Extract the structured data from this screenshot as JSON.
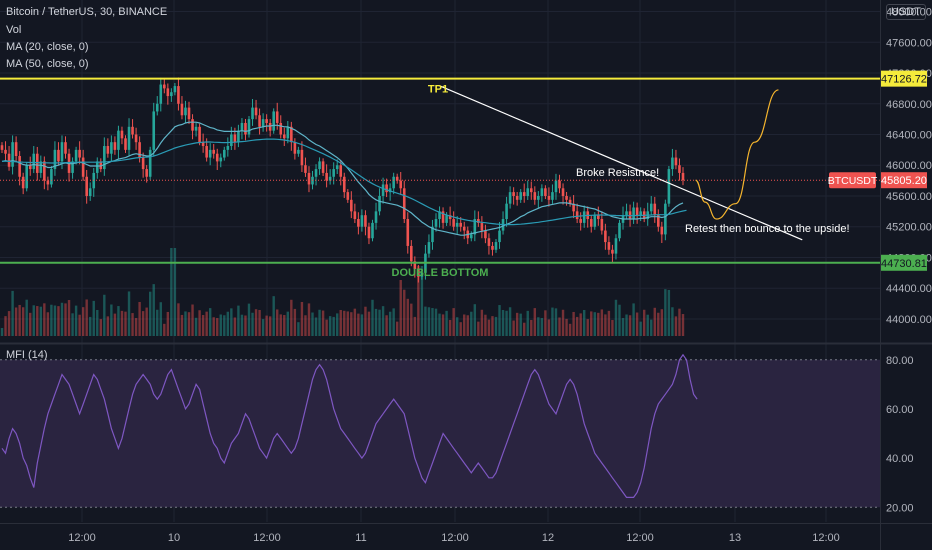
{
  "legend": {
    "title": "Bitcoin / TetherUS, 30, BINANCE",
    "vol": "Vol",
    "ma20": "MA (20, close, 0)",
    "ma50": "MA (50, close, 0)"
  },
  "mfi_label": "MFI (14)",
  "currency": "USDT",
  "colors": {
    "background": "#131722",
    "up": "#26a69a",
    "down": "#ef5350",
    "ma_fast": "#5fb5c9",
    "ma_slow": "#2a9bb5",
    "tp_line": "#f5eb3b",
    "support_line": "#4caf50",
    "trend_line": "#ffffff",
    "projection": "#f5b52e",
    "mfi_line": "#7e57c2",
    "mfi_band": "#2a2440"
  },
  "annotations": {
    "tp1": "TP1",
    "double_bottom": "DOUBLE BOTTOM",
    "broke": "Broke Resistnce!",
    "retest": "Retest then bounce to the upside!"
  },
  "price_tags": {
    "tp": "47126.72",
    "current_symbol": "BTCUSDT",
    "current": "45805.20",
    "support": "44730.81"
  },
  "chart_data": [
    {
      "type": "candlestick",
      "title": "Bitcoin / TetherUS, 30, BINANCE",
      "ylim": [
        43700,
        48150
      ],
      "y_ticks": [
        "44000.00",
        "44400.00",
        "44800.00",
        "45200.00",
        "45600.00",
        "46000.00",
        "46400.00",
        "46800.00",
        "47200.00",
        "47600.00",
        "48000.00"
      ],
      "x_ticks": [
        "12:00",
        "10",
        "12:00",
        "11",
        "12:00",
        "12",
        "12:00",
        "13",
        "12:00"
      ],
      "levels": {
        "tp1": 47126.72,
        "support": 44730.81,
        "last": 45805.2
      },
      "trendline": [
        [
          46,
          47030
        ],
        [
          84,
          45030
        ]
      ],
      "projection": [
        [
          72.8,
          45805
        ],
        [
          73.8,
          45520
        ],
        [
          75,
          45300
        ],
        [
          77,
          45500
        ],
        [
          79,
          46300
        ],
        [
          81.5,
          46980
        ]
      ],
      "closes": [
        46200,
        46150,
        45980,
        46300,
        46120,
        45850,
        45700,
        46000,
        45950,
        46150,
        45900,
        46050,
        45800,
        45750,
        45950,
        46200,
        46050,
        46300,
        46150,
        45900,
        46050,
        46200,
        46100,
        45850,
        45600,
        45700,
        45900,
        46050,
        45950,
        46250,
        46150,
        46300,
        46200,
        46450,
        46350,
        46200,
        46500,
        46400,
        46300,
        46100,
        45950,
        45850,
        46200,
        46700,
        46800,
        47050,
        47000,
        46900,
        46950,
        47030,
        46800,
        46650,
        46750,
        46600,
        46450,
        46500,
        46300,
        46250,
        46100,
        46200,
        46150,
        46050,
        46100,
        46200,
        46250,
        46400,
        46300,
        46450,
        46550,
        46400,
        46600,
        46750,
        46650,
        46500,
        46600,
        46550,
        46450,
        46700,
        46550,
        46400,
        46350,
        46500,
        46300,
        46150,
        46200,
        46000,
        45900,
        45750,
        45850,
        45950,
        46050,
        45900,
        45800,
        45850,
        45950,
        46000,
        45850,
        45650,
        45550,
        45400,
        45300,
        45200,
        45350,
        45200,
        45050,
        45250,
        45400,
        45600,
        45750,
        45650,
        45700,
        45850,
        45800,
        45700,
        45300,
        44950,
        44750,
        44650,
        44550,
        44600,
        44850,
        45000,
        45200,
        45300,
        45400,
        45250,
        45350,
        45300,
        45200,
        45250,
        45200,
        45150,
        45050,
        45100,
        45300,
        45250,
        45150,
        45050,
        44950,
        44900,
        45000,
        45150,
        45300,
        45500,
        45650,
        45600,
        45550,
        45650,
        45600,
        45700,
        45650,
        45550,
        45600,
        45700,
        45600,
        45550,
        45650,
        45800,
        45700,
        45600,
        45550,
        45500,
        45400,
        45300,
        45250,
        45400,
        45300,
        45200,
        45350,
        45300,
        45150,
        45000,
        44900,
        44850,
        45050,
        45250,
        45350,
        45400,
        45300,
        45450,
        45350,
        45400,
        45300,
        45400,
        45500,
        45350,
        45200,
        45100,
        45500,
        45950,
        46100,
        46000,
        45900,
        45805
      ],
      "ma20": [
        46050,
        46060,
        46050,
        46060,
        46050,
        46030,
        46010,
        46000,
        46000,
        46010,
        46000,
        46000,
        45990,
        45970,
        45970,
        45990,
        46000,
        46020,
        46030,
        46020,
        46020,
        46030,
        46040,
        46030,
        46010,
        45990,
        45990,
        45990,
        45990,
        46010,
        46030,
        46050,
        46060,
        46080,
        46090,
        46100,
        46120,
        46140,
        46150,
        46140,
        46130,
        46120,
        46120,
        46160,
        46220,
        46290,
        46350,
        46400,
        46450,
        46500,
        46520,
        46530,
        46550,
        46560,
        46560,
        46560,
        46550,
        46530,
        46510,
        46490,
        46480,
        46460,
        46450,
        46440,
        46440,
        46440,
        46440,
        46440,
        46450,
        46440,
        46450,
        46470,
        46480,
        46490,
        46500,
        46510,
        46510,
        46520,
        46520,
        46510,
        46500,
        46500,
        46480,
        46460,
        46430,
        46400,
        46370,
        46330,
        46300,
        46270,
        46250,
        46220,
        46190,
        46160,
        46130,
        46100,
        46060,
        46010,
        45960,
        45900,
        45840,
        45780,
        45730,
        45680,
        45620,
        45580,
        45550,
        45530,
        45520,
        45510,
        45500,
        45490,
        45480,
        45460,
        45440,
        45410,
        45380,
        45340,
        45300,
        45260,
        45230,
        45200,
        45180,
        45160,
        45150,
        45140,
        45130,
        45120,
        45110,
        45100,
        45090,
        45090,
        45100,
        45110,
        45120,
        45130,
        45140,
        45150,
        45160,
        45170,
        45180,
        45190,
        45210,
        45230,
        45250,
        45270,
        45300,
        45330,
        45350,
        45380,
        45400,
        45420,
        45440,
        45460,
        45470,
        45480,
        45490,
        45500,
        45510,
        45510,
        45510,
        45500,
        45490,
        45480,
        45470,
        45460,
        45450,
        45440,
        45430,
        45410,
        45390,
        45370,
        45350,
        45330,
        45320,
        45310,
        45300,
        45300,
        45300,
        45300,
        45300,
        45310,
        45310,
        45320,
        45330,
        45330,
        45330,
        45320,
        45330,
        45370,
        45420,
        45460,
        45490,
        45510
      ],
      "ma50": [
        46050,
        46052,
        46050,
        46048,
        46045,
        46042,
        46040,
        46038,
        46036,
        46035,
        46034,
        46033,
        46032,
        46030,
        46029,
        46029,
        46030,
        46032,
        46034,
        46035,
        46036,
        46038,
        46040,
        46041,
        46040,
        46040,
        46040,
        46040,
        46041,
        46043,
        46046,
        46050,
        46054,
        46060,
        46066,
        46072,
        46080,
        46088,
        46095,
        46100,
        46104,
        46106,
        46110,
        46120,
        46135,
        46152,
        46170,
        46188,
        46206,
        46224,
        46238,
        46250,
        46262,
        46273,
        46282,
        46290,
        46296,
        46300,
        46302,
        46302,
        46300,
        46298,
        46296,
        46295,
        46296,
        46298,
        46300,
        46304,
        46308,
        46312,
        46318,
        46324,
        46330,
        46334,
        46338,
        46340,
        46340,
        46340,
        46338,
        46334,
        46328,
        46320,
        46310,
        46298,
        46284,
        46268,
        46250,
        46230,
        46210,
        46190,
        46170,
        46150,
        46128,
        46105,
        46080,
        46055,
        46028,
        46000,
        45970,
        45940,
        45908,
        45876,
        45845,
        45815,
        45786,
        45760,
        45736,
        45715,
        45696,
        45680,
        45665,
        45650,
        45636,
        45622,
        45606,
        45588,
        45568,
        45546,
        45522,
        45498,
        45474,
        45450,
        45428,
        45407,
        45388,
        45370,
        45353,
        45338,
        45325,
        45313,
        45302,
        45292,
        45283,
        45276,
        45270,
        45264,
        45258,
        45252,
        45246,
        45240,
        45235,
        45231,
        45228,
        45227,
        45227,
        45228,
        45230,
        45233,
        45237,
        45242,
        45247,
        45252,
        45258,
        45265,
        45272,
        45279,
        45286,
        45294,
        45302,
        45310,
        45318,
        45325,
        45331,
        45336,
        45340,
        45344,
        45347,
        45349,
        45351,
        45352,
        45352,
        45351,
        45350,
        45348,
        45346,
        45345,
        45344,
        45344,
        45344,
        45345,
        45346,
        45347,
        45349,
        45351,
        45353,
        45355,
        45356,
        45356,
        45356,
        45360,
        45370,
        45382,
        45394,
        45405,
        45414
      ],
      "volume_note": "Vol"
    },
    {
      "type": "line",
      "title": "MFI (14)",
      "ylim": [
        14,
        86
      ],
      "y_ticks": [
        "20.00",
        "40.00",
        "60.00",
        "80.00"
      ],
      "band": [
        20,
        80
      ],
      "values": [
        44,
        42,
        48,
        52,
        50,
        46,
        40,
        37,
        32,
        28,
        38,
        45,
        52,
        58,
        62,
        66,
        70,
        74,
        72,
        70,
        66,
        62,
        58,
        62,
        66,
        70,
        74,
        72,
        68,
        64,
        58,
        52,
        48,
        44,
        48,
        54,
        60,
        66,
        70,
        72,
        74,
        72,
        70,
        66,
        64,
        66,
        70,
        74,
        76,
        72,
        68,
        64,
        60,
        62,
        66,
        70,
        68,
        62,
        56,
        50,
        46,
        44,
        40,
        38,
        42,
        46,
        48,
        50,
        54,
        58,
        56,
        52,
        48,
        44,
        42,
        40,
        44,
        48,
        50,
        48,
        46,
        44,
        42,
        44,
        48,
        54,
        60,
        66,
        72,
        76,
        78,
        76,
        72,
        66,
        60,
        56,
        52,
        50,
        48,
        46,
        44,
        42,
        40,
        42,
        46,
        50,
        54,
        56,
        58,
        60,
        62,
        64,
        62,
        60,
        58,
        52,
        46,
        40,
        36,
        32,
        30,
        34,
        38,
        42,
        46,
        50,
        48,
        46,
        44,
        42,
        40,
        38,
        36,
        34,
        36,
        38,
        36,
        34,
        32,
        32,
        34,
        38,
        42,
        46,
        50,
        54,
        58,
        62,
        66,
        70,
        74,
        76,
        74,
        70,
        66,
        62,
        60,
        58,
        62,
        66,
        70,
        72,
        70,
        66,
        60,
        54,
        50,
        46,
        42,
        40,
        38,
        36,
        34,
        32,
        30,
        28,
        26,
        24,
        24,
        24,
        26,
        30,
        36,
        44,
        52,
        58,
        62,
        64,
        66,
        68,
        70,
        74,
        80,
        82,
        80,
        72,
        66,
        64
      ]
    }
  ]
}
